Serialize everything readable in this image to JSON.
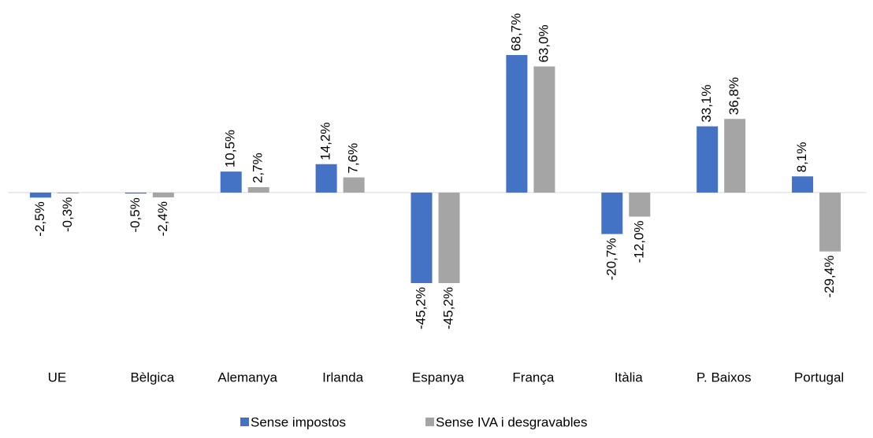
{
  "chart_data": {
    "type": "bar",
    "categories": [
      "UE",
      "Bèlgica",
      "Alemanya",
      "Irlanda",
      "Espanya",
      "França",
      "Itàlia",
      "P. Baixos",
      "Portugal"
    ],
    "series": [
      {
        "name": "Sense impostos",
        "color": "#4472c4",
        "values": [
          -2.5,
          -0.5,
          10.5,
          14.2,
          -45.2,
          68.7,
          -20.7,
          33.1,
          8.1
        ],
        "value_labels": [
          "-2,5%",
          "-0,5%",
          "10,5%",
          "14,2%",
          "-45,2%",
          "68,7%",
          "-20,7%",
          "33,1%",
          "8,1%"
        ]
      },
      {
        "name": "Sense IVA i desgravables",
        "color": "#a5a5a5",
        "values": [
          -0.3,
          -2.4,
          2.7,
          7.6,
          -45.2,
          63.0,
          -12.0,
          36.8,
          -29.4
        ],
        "value_labels": [
          "-0,3%",
          "-2,4%",
          "2,7%",
          "7,6%",
          "-45,2%",
          "63,0%",
          "-12,0%",
          "36,8%",
          "-29,4%"
        ]
      }
    ],
    "legend": "bottom"
  }
}
